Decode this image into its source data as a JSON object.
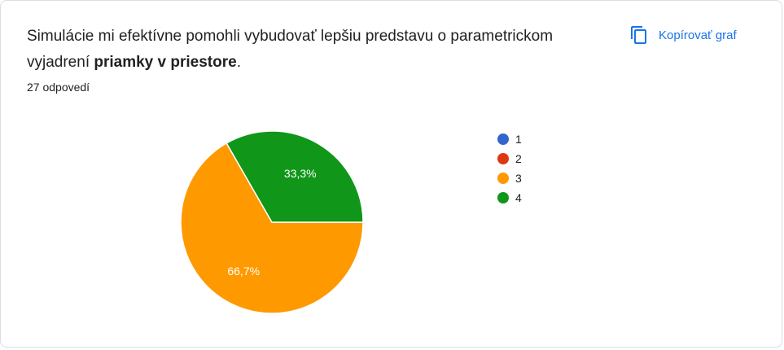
{
  "question": {
    "text_part1": "Simulácie mi efektívne pomohli vybudovať lepšiu predstavu o parametrickom vyjadrení ",
    "text_bold": "priamky v priestore",
    "text_part2": "."
  },
  "response_count": "27 odpovedí",
  "copy_button": {
    "label": "Kopírovať graf",
    "icon": "copy-icon"
  },
  "colors": {
    "accent": "#1a73e8"
  },
  "chart_data": {
    "type": "pie",
    "categories": [
      "1",
      "2",
      "3",
      "4"
    ],
    "values": [
      0,
      0,
      66.7,
      33.3
    ],
    "labels": [
      "",
      "",
      "66,7%",
      "33,3%"
    ],
    "colors": [
      "#3366cc",
      "#dc3912",
      "#ff9900",
      "#109618"
    ],
    "legend_position": "right"
  }
}
